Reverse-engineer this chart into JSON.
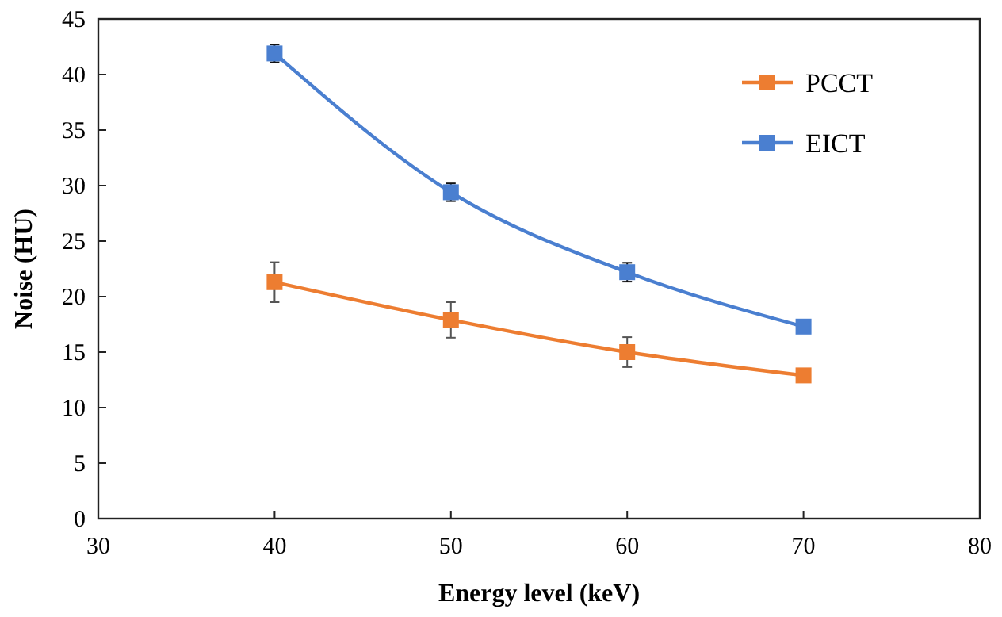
{
  "chart_data": {
    "type": "line",
    "xlabel": "Energy level (keV)",
    "ylabel": "Noise (HU)",
    "x": [
      40,
      50,
      60,
      70
    ],
    "series": [
      {
        "name": "PCCT",
        "color": "#ed7d31",
        "values": [
          21.3,
          17.9,
          15.0,
          12.9
        ],
        "errors": [
          1.8,
          1.6,
          1.35,
          null
        ]
      },
      {
        "name": "EICT",
        "color": "#4a7fd0",
        "values": [
          41.9,
          29.4,
          22.2,
          17.3
        ],
        "errors": [
          0.8,
          0.8,
          0.85,
          null
        ]
      }
    ],
    "xlim": [
      30,
      80
    ],
    "xticks": [
      30,
      40,
      50,
      60,
      70,
      80
    ],
    "ylim": [
      0,
      45
    ],
    "yticks": [
      0,
      5,
      10,
      15,
      20,
      25,
      30,
      35,
      40,
      45
    ],
    "grid": false,
    "legend": "top right",
    "marker": "square",
    "line_style": "solid"
  }
}
